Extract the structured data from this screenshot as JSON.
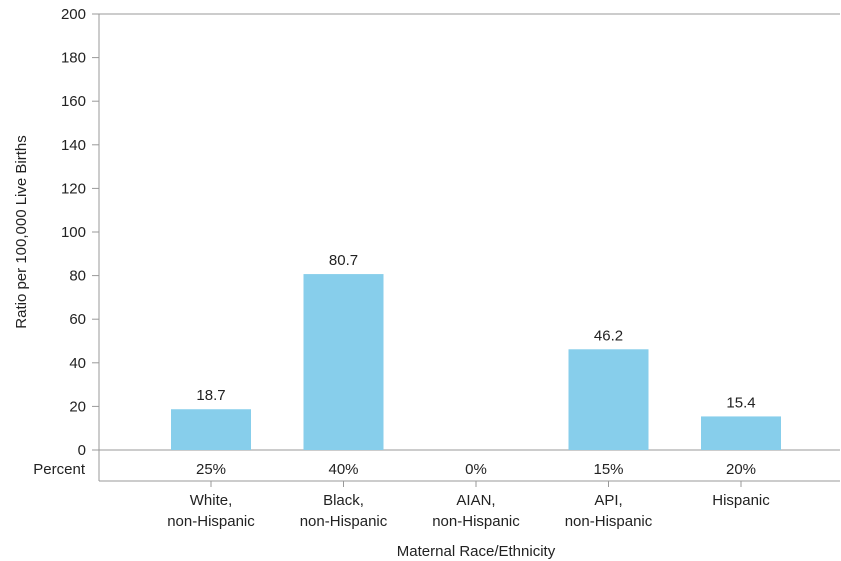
{
  "chart_data": {
    "type": "bar",
    "categories": [
      [
        "White,",
        "non-Hispanic"
      ],
      [
        "Black,",
        "non-Hispanic"
      ],
      [
        "AIAN,",
        "non-Hispanic"
      ],
      [
        "API,",
        "non-Hispanic"
      ],
      [
        "Hispanic"
      ]
    ],
    "values": [
      18.7,
      80.7,
      null,
      46.2,
      15.4
    ],
    "data_labels": [
      "18.7",
      "80.7",
      "",
      "46.2",
      "15.4"
    ],
    "percent_row_label": "Percent",
    "percents": [
      "25%",
      "40%",
      "0%",
      "15%",
      "20%"
    ],
    "xlabel": "Maternal Race/Ethnicity",
    "ylabel": "Ratio per 100,000 Live Births",
    "ylim": [
      0,
      200
    ],
    "yticks": [
      0,
      20,
      40,
      60,
      80,
      100,
      120,
      140,
      160,
      180,
      200
    ],
    "bar_color": "#87CEEB",
    "axis_color": "#999999",
    "grid": false
  }
}
